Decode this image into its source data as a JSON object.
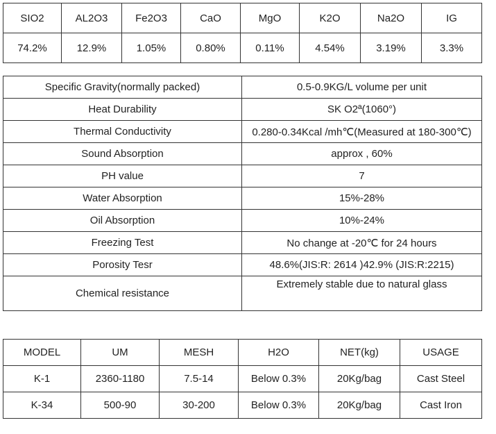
{
  "composition": {
    "headers": [
      "SIO2",
      "AL2O3",
      "Fe2O3",
      "CaO",
      "MgO",
      "K2O",
      "Na2O",
      "IG"
    ],
    "values": [
      "74.2%",
      "12.9%",
      "1.05%",
      "0.80%",
      "0.11%",
      "4.54%",
      "3.19%",
      "3.3%"
    ]
  },
  "properties": [
    {
      "name": "Specific Gravity(normally packed)",
      "value": "0.5-0.9KG/L volume per unit"
    },
    {
      "name": "Heat Durability",
      "value": "SK O2ª(1060°)"
    },
    {
      "name": "Thermal Conductivity",
      "value": "0.280-0.34Kcal /mh℃(Measured at 180-300℃)"
    },
    {
      "name": "Sound Absorption",
      "value": "approx , 60%"
    },
    {
      "name": "PH value",
      "value": "7"
    },
    {
      "name": "Water Absorption",
      "value": "15%-28%"
    },
    {
      "name": "Oil Absorption",
      "value": "10%-24%"
    },
    {
      "name": "Freezing Test",
      "value": "No change at -20℃ for 24 hours"
    },
    {
      "name": "Porosity  Tesr",
      "value": "48.6%(JIS:R: 2614 )42.9% (JIS:R:2215)"
    },
    {
      "name": "Chemical resistance",
      "value": "Extremely stable due to natural glass"
    }
  ],
  "models": {
    "headers": [
      "MODEL",
      "UM",
      "MESH",
      "H2O",
      "NET(kg)",
      "USAGE"
    ],
    "rows": [
      [
        "K-1",
        "2360-1180",
        "7.5-14",
        "Below 0.3%",
        "20Kg/bag",
        "Cast Steel"
      ],
      [
        "K-34",
        "500-90",
        "30-200",
        "Below 0.3%",
        "20Kg/bag",
        "Cast Iron"
      ]
    ]
  }
}
